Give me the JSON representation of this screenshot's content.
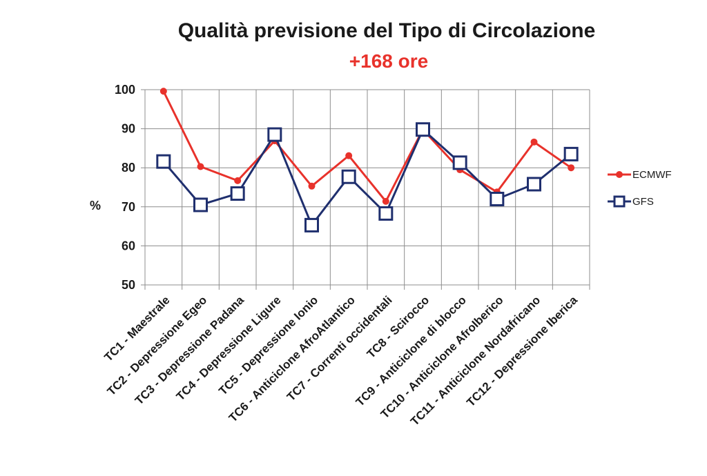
{
  "chart_data": {
    "type": "line",
    "title": "Qualità previsione del Tipo di Circolazione",
    "subtitle": "+168 ore",
    "ylabel": "%",
    "ylim": [
      50,
      100
    ],
    "yticks": [
      50,
      60,
      70,
      80,
      90,
      100
    ],
    "grid": true,
    "legend_position": "right",
    "categories": [
      "TC1 -  Maestrale",
      "TC2 -  Depressione Egeo",
      "TC3 -  Depressione Padana",
      "TC4 -  Depressione Ligure",
      "TC5 -  Depressione Ionio",
      "TC6 -  Anticiclone AfroAtlantico",
      "TC7 -  Correnti occidentali",
      "TC8 -  Scirocco",
      "TC9 -  Anticiclone di blocco",
      "TC10 - Anticiclone AfroIberico",
      "TC11 - Anticiclone Nordafricano",
      "TC12 - Depressione Iberica"
    ],
    "series": [
      {
        "name": "ECMWF",
        "color": "#e8322b",
        "marker": "circle",
        "values": [
          99.6,
          80.3,
          76.7,
          86.9,
          75.3,
          83.1,
          71.4,
          89.8,
          79.5,
          73.8,
          86.6,
          80.0
        ]
      },
      {
        "name": "GFS",
        "color": "#1f2f6e",
        "marker": "open-square",
        "values": [
          81.6,
          70.5,
          73.4,
          88.5,
          65.3,
          77.7,
          68.3,
          89.8,
          81.3,
          72.0,
          75.8,
          83.5
        ]
      }
    ]
  },
  "colors": {
    "subtitle": "#e8322b",
    "grid": "#8c8c8c"
  }
}
